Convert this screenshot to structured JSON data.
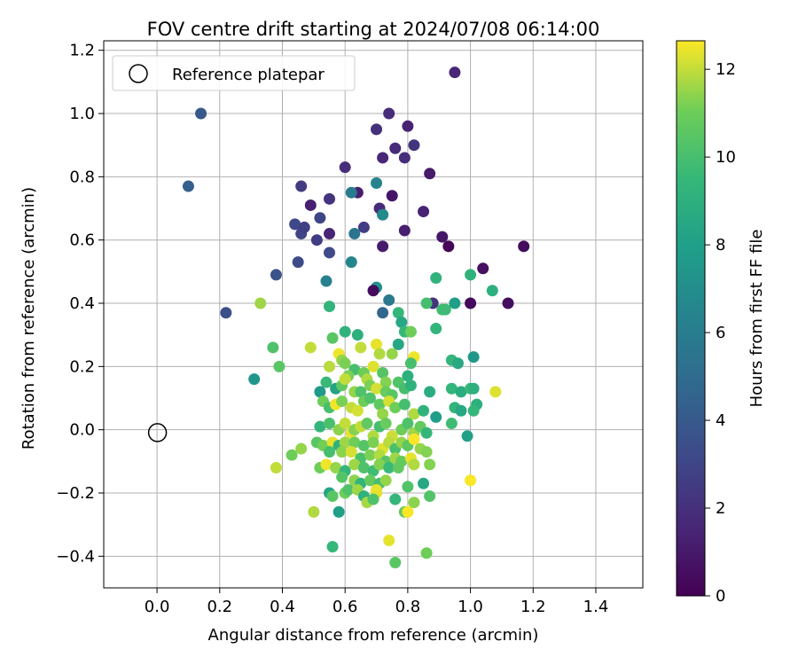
{
  "chart_data": {
    "type": "scatter",
    "title": "FOV centre drift starting at 2024/07/08 06:14:00",
    "xlabel": "Angular distance from reference (arcmin)",
    "ylabel": "Rotation from reference (arcmin)",
    "xlim": [
      -0.17,
      1.55
    ],
    "ylim": [
      -0.5,
      1.23
    ],
    "x_ticks": [
      0.0,
      0.2,
      0.4,
      0.6,
      0.8,
      1.0,
      1.2,
      1.4
    ],
    "x_tick_labels": [
      "0.0",
      "0.2",
      "0.4",
      "0.6",
      "0.8",
      "1.0",
      "1.2",
      "1.4"
    ],
    "y_ticks": [
      -0.4,
      -0.2,
      0.0,
      0.2,
      0.4,
      0.6,
      0.8,
      1.0,
      1.2
    ],
    "y_tick_labels": [
      "−0.4",
      "−0.2",
      "0.0",
      "0.2",
      "0.4",
      "0.6",
      "0.8",
      "1.0",
      "1.2"
    ],
    "grid": true,
    "legend": {
      "position": "top-left",
      "entries": [
        "Reference platepar"
      ]
    },
    "reference_point": {
      "label": "Reference platepar",
      "x": 0.0,
      "y": 0.0
    },
    "colorbar": {
      "label": "Hours from first FF file",
      "colormap": "viridis",
      "range": [
        0,
        12.65
      ],
      "ticks": [
        0,
        2,
        4,
        6,
        8,
        10,
        12
      ],
      "tick_labels": [
        "0",
        "2",
        "4",
        "6",
        "8",
        "10",
        "12"
      ]
    },
    "points": [
      {
        "x": 0.95,
        "y": 1.13,
        "c": 1.5
      },
      {
        "x": 0.74,
        "y": 1.0,
        "c": 1.8
      },
      {
        "x": 0.8,
        "y": 0.96,
        "c": 1.4
      },
      {
        "x": 0.7,
        "y": 0.95,
        "c": 2.0
      },
      {
        "x": 0.76,
        "y": 0.89,
        "c": 1.7
      },
      {
        "x": 0.82,
        "y": 0.9,
        "c": 2.2
      },
      {
        "x": 0.72,
        "y": 0.86,
        "c": 1.6
      },
      {
        "x": 0.79,
        "y": 0.86,
        "c": 1.9
      },
      {
        "x": 0.6,
        "y": 0.83,
        "c": 1.9
      },
      {
        "x": 0.87,
        "y": 0.81,
        "c": 1.1
      },
      {
        "x": 0.46,
        "y": 0.77,
        "c": 2.5
      },
      {
        "x": 0.64,
        "y": 0.75,
        "c": 1.2
      },
      {
        "x": 0.75,
        "y": 0.74,
        "c": 0.8
      },
      {
        "x": 0.55,
        "y": 0.73,
        "c": 2.2
      },
      {
        "x": 0.49,
        "y": 0.71,
        "c": 1.3
      },
      {
        "x": 0.71,
        "y": 0.7,
        "c": 1.7
      },
      {
        "x": 0.72,
        "y": 0.68,
        "c": 2.1
      },
      {
        "x": 0.85,
        "y": 0.69,
        "c": 1.4
      },
      {
        "x": 0.52,
        "y": 0.67,
        "c": 3.0
      },
      {
        "x": 0.44,
        "y": 0.65,
        "c": 3.1
      },
      {
        "x": 0.46,
        "y": 0.62,
        "c": 3.0
      },
      {
        "x": 0.47,
        "y": 0.64,
        "c": 2.7
      },
      {
        "x": 0.55,
        "y": 0.62,
        "c": 1.5
      },
      {
        "x": 0.66,
        "y": 0.64,
        "c": 2.6
      },
      {
        "x": 0.79,
        "y": 0.63,
        "c": 1.2
      },
      {
        "x": 0.51,
        "y": 0.6,
        "c": 2.6
      },
      {
        "x": 0.72,
        "y": 0.58,
        "c": 1.1
      },
      {
        "x": 0.91,
        "y": 0.61,
        "c": 0.9
      },
      {
        "x": 0.93,
        "y": 0.58,
        "c": 0.2
      },
      {
        "x": 0.55,
        "y": 0.56,
        "c": 3.2
      },
      {
        "x": 0.45,
        "y": 0.53,
        "c": 3.3
      },
      {
        "x": 0.38,
        "y": 0.49,
        "c": 3.7
      },
      {
        "x": 1.04,
        "y": 0.51,
        "c": 0.6
      },
      {
        "x": 1.17,
        "y": 0.58,
        "c": 0.4
      },
      {
        "x": 0.14,
        "y": 1.0,
        "c": 4.0
      },
      {
        "x": 0.1,
        "y": 0.77,
        "c": 4.3
      },
      {
        "x": 0.22,
        "y": 0.37,
        "c": 3.5
      },
      {
        "x": 0.62,
        "y": 0.75,
        "c": 5.9
      },
      {
        "x": 0.7,
        "y": 0.78,
        "c": 6.4
      },
      {
        "x": 0.72,
        "y": 0.68,
        "c": 6.8
      },
      {
        "x": 0.63,
        "y": 0.62,
        "c": 5.6
      },
      {
        "x": 0.62,
        "y": 0.53,
        "c": 6.5
      },
      {
        "x": 0.54,
        "y": 0.47,
        "c": 6.2
      },
      {
        "x": 0.7,
        "y": 0.45,
        "c": 7.2
      },
      {
        "x": 0.69,
        "y": 0.44,
        "c": 0.4
      },
      {
        "x": 0.74,
        "y": 0.41,
        "c": 5.8
      },
      {
        "x": 0.72,
        "y": 0.37,
        "c": 4.7
      },
      {
        "x": 0.88,
        "y": 0.4,
        "c": 2.2
      },
      {
        "x": 0.89,
        "y": 0.48,
        "c": 9.2
      },
      {
        "x": 0.95,
        "y": 0.4,
        "c": 8.0
      },
      {
        "x": 1.0,
        "y": 0.4,
        "c": 0.3
      },
      {
        "x": 1.12,
        "y": 0.4,
        "c": 0.5
      },
      {
        "x": 1.0,
        "y": 0.49,
        "c": 9.2
      },
      {
        "x": 1.07,
        "y": 0.44,
        "c": 9.0
      },
      {
        "x": 0.86,
        "y": 0.4,
        "c": 10.0
      },
      {
        "x": 0.91,
        "y": 0.38,
        "c": 9.8
      },
      {
        "x": 0.92,
        "y": 0.38,
        "c": 9.7
      },
      {
        "x": 0.33,
        "y": 0.4,
        "c": 11.6
      },
      {
        "x": 0.55,
        "y": 0.39,
        "c": 9.3
      },
      {
        "x": 0.77,
        "y": 0.37,
        "c": 9.4
      },
      {
        "x": 0.78,
        "y": 0.34,
        "c": 8.5
      },
      {
        "x": 0.6,
        "y": 0.31,
        "c": 9.2
      },
      {
        "x": 0.64,
        "y": 0.3,
        "c": 9.0
      },
      {
        "x": 0.56,
        "y": 0.29,
        "c": 10.5
      },
      {
        "x": 0.79,
        "y": 0.31,
        "c": 9.5
      },
      {
        "x": 0.81,
        "y": 0.31,
        "c": 11.0
      },
      {
        "x": 0.89,
        "y": 0.32,
        "c": 9.3
      },
      {
        "x": 0.37,
        "y": 0.26,
        "c": 10.2
      },
      {
        "x": 0.49,
        "y": 0.26,
        "c": 12.0
      },
      {
        "x": 0.65,
        "y": 0.26,
        "c": 12.0
      },
      {
        "x": 0.7,
        "y": 0.27,
        "c": 12.4
      },
      {
        "x": 0.71,
        "y": 0.24,
        "c": 11.8
      },
      {
        "x": 0.75,
        "y": 0.24,
        "c": 11.5
      },
      {
        "x": 0.77,
        "y": 0.27,
        "c": 8.5
      },
      {
        "x": 0.82,
        "y": 0.23,
        "c": 12.5
      },
      {
        "x": 0.81,
        "y": 0.21,
        "c": 10.0
      },
      {
        "x": 0.94,
        "y": 0.22,
        "c": 9.4
      },
      {
        "x": 0.96,
        "y": 0.21,
        "c": 8.6
      },
      {
        "x": 1.01,
        "y": 0.23,
        "c": 7.5
      },
      {
        "x": 0.39,
        "y": 0.2,
        "c": 10.5
      },
      {
        "x": 0.58,
        "y": 0.24,
        "c": 12.5
      },
      {
        "x": 0.59,
        "y": 0.22,
        "c": 11.5
      },
      {
        "x": 0.55,
        "y": 0.2,
        "c": 11.9
      },
      {
        "x": 0.6,
        "y": 0.21,
        "c": 11.2
      },
      {
        "x": 0.63,
        "y": 0.19,
        "c": 10.0
      },
      {
        "x": 0.66,
        "y": 0.18,
        "c": 11.0
      },
      {
        "x": 0.69,
        "y": 0.2,
        "c": 12.3
      },
      {
        "x": 0.61,
        "y": 0.17,
        "c": 11.2
      },
      {
        "x": 0.67,
        "y": 0.16,
        "c": 11.8
      },
      {
        "x": 0.72,
        "y": 0.18,
        "c": 10.4
      },
      {
        "x": 0.73,
        "y": 0.15,
        "c": 11.3
      },
      {
        "x": 0.8,
        "y": 0.17,
        "c": 9.0
      },
      {
        "x": 0.77,
        "y": 0.15,
        "c": 10.3
      },
      {
        "x": 0.31,
        "y": 0.16,
        "c": 7.5
      },
      {
        "x": 0.54,
        "y": 0.15,
        "c": 9.6
      },
      {
        "x": 0.57,
        "y": 0.13,
        "c": 8.3
      },
      {
        "x": 0.59,
        "y": 0.14,
        "c": 10.7
      },
      {
        "x": 0.6,
        "y": 0.16,
        "c": 12.0
      },
      {
        "x": 0.63,
        "y": 0.12,
        "c": 11.5
      },
      {
        "x": 0.65,
        "y": 0.12,
        "c": 10.2
      },
      {
        "x": 0.68,
        "y": 0.14,
        "c": 11.2
      },
      {
        "x": 0.7,
        "y": 0.13,
        "c": 12.2
      },
      {
        "x": 0.73,
        "y": 0.12,
        "c": 10.9
      },
      {
        "x": 0.75,
        "y": 0.11,
        "c": 10.5
      },
      {
        "x": 0.79,
        "y": 0.13,
        "c": 10.0
      },
      {
        "x": 0.81,
        "y": 0.14,
        "c": 9.2
      },
      {
        "x": 0.87,
        "y": 0.12,
        "c": 8.8
      },
      {
        "x": 0.94,
        "y": 0.13,
        "c": 9.3
      },
      {
        "x": 0.97,
        "y": 0.12,
        "c": 8.8
      },
      {
        "x": 1.0,
        "y": 0.13,
        "c": 9.6
      },
      {
        "x": 1.01,
        "y": 0.13,
        "c": 9.0
      },
      {
        "x": 1.08,
        "y": 0.12,
        "c": 12.3
      },
      {
        "x": 0.52,
        "y": 0.12,
        "c": 7.6
      },
      {
        "x": 0.53,
        "y": 0.09,
        "c": 11.0
      },
      {
        "x": 0.55,
        "y": 0.07,
        "c": 10.0
      },
      {
        "x": 0.57,
        "y": 0.08,
        "c": 12.5
      },
      {
        "x": 0.59,
        "y": 0.09,
        "c": 11.2
      },
      {
        "x": 0.62,
        "y": 0.07,
        "c": 12.0
      },
      {
        "x": 0.64,
        "y": 0.06,
        "c": 12.2
      },
      {
        "x": 0.66,
        "y": 0.09,
        "c": 11.0
      },
      {
        "x": 0.68,
        "y": 0.1,
        "c": 10.2
      },
      {
        "x": 0.71,
        "y": 0.08,
        "c": 10.7
      },
      {
        "x": 0.72,
        "y": 0.05,
        "c": 11.5
      },
      {
        "x": 0.74,
        "y": 0.09,
        "c": 12.2
      },
      {
        "x": 0.76,
        "y": 0.07,
        "c": 11.0
      },
      {
        "x": 0.79,
        "y": 0.08,
        "c": 10.0
      },
      {
        "x": 0.82,
        "y": 0.05,
        "c": 11.8
      },
      {
        "x": 0.85,
        "y": 0.06,
        "c": 9.2
      },
      {
        "x": 0.89,
        "y": 0.04,
        "c": 8.0
      },
      {
        "x": 0.95,
        "y": 0.07,
        "c": 9.3
      },
      {
        "x": 0.97,
        "y": 0.06,
        "c": 8.5
      },
      {
        "x": 1.02,
        "y": 0.08,
        "c": 9.0
      },
      {
        "x": 1.01,
        "y": 0.06,
        "c": 9.5
      },
      {
        "x": 0.52,
        "y": 0.01,
        "c": 9.4
      },
      {
        "x": 0.55,
        "y": 0.02,
        "c": 10.1
      },
      {
        "x": 0.58,
        "y": 0.0,
        "c": 11.4
      },
      {
        "x": 0.6,
        "y": 0.02,
        "c": 12.0
      },
      {
        "x": 0.62,
        "y": -0.01,
        "c": 12.4
      },
      {
        "x": 0.63,
        "y": 0.0,
        "c": 11.3
      },
      {
        "x": 0.65,
        "y": 0.01,
        "c": 12.0
      },
      {
        "x": 0.67,
        "y": 0.02,
        "c": 10.7
      },
      {
        "x": 0.69,
        "y": -0.02,
        "c": 11.8
      },
      {
        "x": 0.71,
        "y": 0.01,
        "c": 10.0
      },
      {
        "x": 0.73,
        "y": 0.02,
        "c": 10.9
      },
      {
        "x": 0.75,
        "y": -0.02,
        "c": 12.1
      },
      {
        "x": 0.78,
        "y": 0.0,
        "c": 11.0
      },
      {
        "x": 0.8,
        "y": 0.02,
        "c": 10.2
      },
      {
        "x": 0.82,
        "y": -0.01,
        "c": 11.6
      },
      {
        "x": 0.84,
        "y": 0.01,
        "c": 10.8
      },
      {
        "x": 0.86,
        "y": -0.01,
        "c": 9.4
      },
      {
        "x": 0.94,
        "y": 0.02,
        "c": 9.8
      },
      {
        "x": 0.99,
        "y": -0.02,
        "c": 8.1
      },
      {
        "x": 0.51,
        "y": -0.04,
        "c": 10.5
      },
      {
        "x": 0.53,
        "y": -0.05,
        "c": 11.1
      },
      {
        "x": 0.56,
        "y": -0.04,
        "c": 12.4
      },
      {
        "x": 0.58,
        "y": -0.05,
        "c": 9.2
      },
      {
        "x": 0.6,
        "y": -0.04,
        "c": 11.6
      },
      {
        "x": 0.63,
        "y": -0.04,
        "c": 11.0
      },
      {
        "x": 0.66,
        "y": -0.05,
        "c": 10.4
      },
      {
        "x": 0.69,
        "y": -0.04,
        "c": 11.2
      },
      {
        "x": 0.72,
        "y": -0.06,
        "c": 12.3
      },
      {
        "x": 0.74,
        "y": -0.04,
        "c": 11.9
      },
      {
        "x": 0.76,
        "y": -0.06,
        "c": 10.1
      },
      {
        "x": 0.78,
        "y": -0.04,
        "c": 11.5
      },
      {
        "x": 0.8,
        "y": -0.05,
        "c": 10.6
      },
      {
        "x": 0.82,
        "y": -0.03,
        "c": 12.6
      },
      {
        "x": 0.84,
        "y": -0.06,
        "c": 11.5
      },
      {
        "x": 0.43,
        "y": -0.08,
        "c": 11.0
      },
      {
        "x": 0.46,
        "y": -0.06,
        "c": 11.5
      },
      {
        "x": 0.55,
        "y": -0.07,
        "c": 10.0
      },
      {
        "x": 0.59,
        "y": -0.07,
        "c": 11.4
      },
      {
        "x": 0.62,
        "y": -0.07,
        "c": 12.2
      },
      {
        "x": 0.65,
        "y": -0.09,
        "c": 10.1
      },
      {
        "x": 0.68,
        "y": -0.08,
        "c": 11.2
      },
      {
        "x": 0.71,
        "y": -0.08,
        "c": 11.8
      },
      {
        "x": 0.73,
        "y": -0.1,
        "c": 10.4
      },
      {
        "x": 0.76,
        "y": -0.09,
        "c": 11.6
      },
      {
        "x": 0.78,
        "y": -0.1,
        "c": 10.8
      },
      {
        "x": 0.81,
        "y": -0.09,
        "c": 12.4
      },
      {
        "x": 0.86,
        "y": -0.07,
        "c": 11.3
      },
      {
        "x": 0.38,
        "y": -0.12,
        "c": 12.0
      },
      {
        "x": 0.52,
        "y": -0.12,
        "c": 11.0
      },
      {
        "x": 0.54,
        "y": -0.11,
        "c": 12.5
      },
      {
        "x": 0.57,
        "y": -0.12,
        "c": 11.5
      },
      {
        "x": 0.6,
        "y": -0.13,
        "c": 9.4
      },
      {
        "x": 0.63,
        "y": -0.11,
        "c": 11.6
      },
      {
        "x": 0.66,
        "y": -0.12,
        "c": 10.2
      },
      {
        "x": 0.69,
        "y": -0.13,
        "c": 9.8
      },
      {
        "x": 0.71,
        "y": -0.11,
        "c": 11.3
      },
      {
        "x": 0.74,
        "y": -0.12,
        "c": 9.6
      },
      {
        "x": 0.77,
        "y": -0.12,
        "c": 10.7
      },
      {
        "x": 0.82,
        "y": -0.11,
        "c": 11.8
      },
      {
        "x": 0.87,
        "y": -0.11,
        "c": 11.3
      },
      {
        "x": 0.59,
        "y": -0.15,
        "c": 10.4
      },
      {
        "x": 0.63,
        "y": -0.16,
        "c": 11.4
      },
      {
        "x": 0.65,
        "y": -0.17,
        "c": 9.3
      },
      {
        "x": 0.68,
        "y": -0.16,
        "c": 10.8
      },
      {
        "x": 0.71,
        "y": -0.17,
        "c": 9.9
      },
      {
        "x": 0.73,
        "y": -0.16,
        "c": 11.5
      },
      {
        "x": 0.8,
        "y": -0.18,
        "c": 10.3
      },
      {
        "x": 0.85,
        "y": -0.17,
        "c": 8.5
      },
      {
        "x": 1.0,
        "y": -0.16,
        "c": 12.6
      },
      {
        "x": 0.55,
        "y": -0.2,
        "c": 8.3
      },
      {
        "x": 0.56,
        "y": -0.21,
        "c": 10.5
      },
      {
        "x": 0.6,
        "y": -0.2,
        "c": 11.0
      },
      {
        "x": 0.61,
        "y": -0.19,
        "c": 10.2
      },
      {
        "x": 0.64,
        "y": -0.19,
        "c": 11.6
      },
      {
        "x": 0.66,
        "y": -0.21,
        "c": 9.1
      },
      {
        "x": 0.7,
        "y": -0.2,
        "c": 12.3
      },
      {
        "x": 0.7,
        "y": -0.19,
        "c": 12.4
      },
      {
        "x": 0.67,
        "y": -0.23,
        "c": 11.7
      },
      {
        "x": 0.69,
        "y": -0.22,
        "c": 10.2
      },
      {
        "x": 0.76,
        "y": -0.22,
        "c": 9.4
      },
      {
        "x": 0.82,
        "y": -0.23,
        "c": 11.4
      },
      {
        "x": 0.87,
        "y": -0.21,
        "c": 10.3
      },
      {
        "x": 0.5,
        "y": -0.26,
        "c": 11.8
      },
      {
        "x": 0.58,
        "y": -0.26,
        "c": 8.0
      },
      {
        "x": 0.79,
        "y": -0.26,
        "c": 10.7
      },
      {
        "x": 0.8,
        "y": -0.26,
        "c": 12.6
      },
      {
        "x": 0.56,
        "y": -0.37,
        "c": 9.5
      },
      {
        "x": 0.74,
        "y": -0.35,
        "c": 12.4
      },
      {
        "x": 0.86,
        "y": -0.39,
        "c": 11.0
      },
      {
        "x": 0.76,
        "y": -0.42,
        "c": 10.5
      }
    ]
  }
}
